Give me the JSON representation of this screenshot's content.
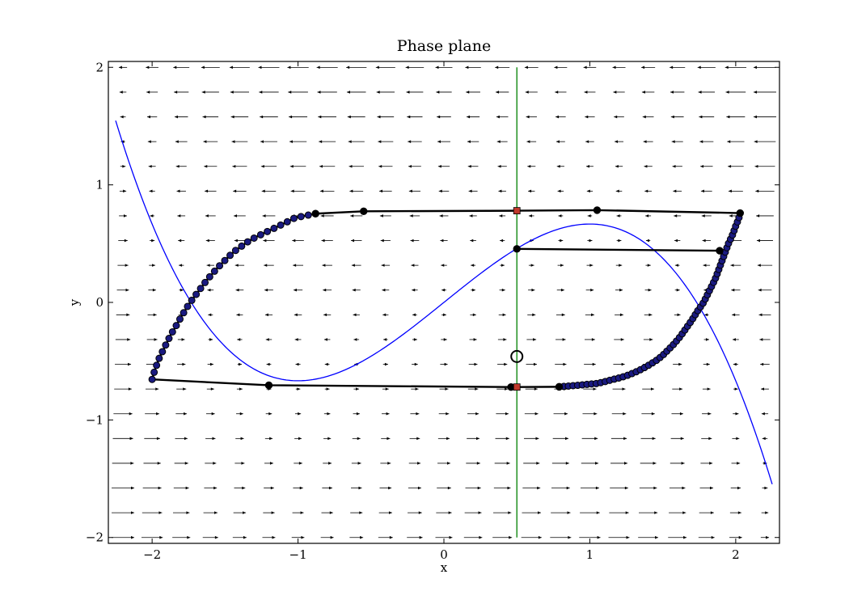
{
  "chart_data": {
    "type": "line",
    "title": "Phase plane",
    "xlabel": "x",
    "ylabel": "y",
    "xlim": [
      -2.3,
      2.3
    ],
    "ylim": [
      -2.05,
      2.05
    ],
    "grid": false,
    "legend": "none",
    "x_ticks": [
      {
        "value": -2,
        "label": "−2"
      },
      {
        "value": -1,
        "label": "−1"
      },
      {
        "value": 0,
        "label": "0"
      },
      {
        "value": 1,
        "label": "1"
      },
      {
        "value": 2,
        "label": "2"
      }
    ],
    "y_ticks": [
      {
        "value": -2,
        "label": "−2"
      },
      {
        "value": -1,
        "label": "−1"
      },
      {
        "value": 0,
        "label": "0"
      },
      {
        "value": 1,
        "label": "1"
      },
      {
        "value": 2,
        "label": "2"
      }
    ],
    "colors": {
      "nullcline": "#0000ff",
      "vertical_line": "#007f00",
      "trajectory": "#000000",
      "marker_face": "#000000",
      "marker_edge": "#000000",
      "dense_marker_face": "#1a1a80",
      "square_marker": "#c0392b",
      "vector_field": "#000000",
      "background": "#ffffff"
    },
    "vector_field": {
      "x_start": -2.2,
      "x_step": 0.2,
      "x_count": 23,
      "y_start": -2.0,
      "y_step": 0.2105,
      "y_count": 20,
      "model": "fitzhugh-nagumo dx = x - x^3/3 - y (arrows scaled by magnitude)"
    },
    "nullcline": {
      "equation": "y = x - x^3/3",
      "x_range": [
        -2.25,
        2.25
      ]
    },
    "vertical_line": {
      "x": 0.5,
      "y_range": [
        -2.0,
        2.0
      ]
    },
    "fixed_point": {
      "x": 0.5,
      "y": -0.46
    },
    "trajectories": [
      {
        "points": [
          [
            0.5,
            0.78
          ],
          [
            1.05,
            0.785
          ],
          [
            2.03,
            0.76
          ]
        ],
        "markers": [
          [
            -0.55,
            0.775
          ],
          [
            -0.88,
            0.755
          ],
          [
            1.05,
            0.785
          ],
          [
            2.03,
            0.76
          ]
        ]
      },
      {
        "points": [
          [
            0.5,
            0.455
          ],
          [
            1.89,
            0.44
          ]
        ],
        "markers": [
          [
            0.5,
            0.455
          ],
          [
            1.89,
            0.44
          ]
        ]
      },
      {
        "points": [
          [
            -2.0,
            -0.655
          ],
          [
            -1.2,
            -0.705
          ],
          [
            0.46,
            -0.72
          ],
          [
            0.79,
            -0.718
          ]
        ],
        "markers": [
          [
            -1.2,
            -0.705
          ],
          [
            0.46,
            -0.72
          ],
          [
            0.79,
            -0.718
          ]
        ]
      }
    ],
    "left_branch": {
      "points": [
        [
          -2.0,
          -0.655
        ],
        [
          -1.99,
          -0.61
        ],
        [
          -1.98,
          -0.57
        ],
        [
          -1.965,
          -0.52
        ],
        [
          -1.95,
          -0.47
        ],
        [
          -1.93,
          -0.42
        ],
        [
          -1.91,
          -0.37
        ],
        [
          -1.89,
          -0.32
        ],
        [
          -1.87,
          -0.27
        ],
        [
          -1.845,
          -0.22
        ],
        [
          -1.82,
          -0.165
        ],
        [
          -1.795,
          -0.11
        ],
        [
          -1.77,
          -0.06
        ],
        [
          -1.745,
          -0.01
        ],
        [
          -1.715,
          0.04
        ],
        [
          -1.685,
          0.09
        ],
        [
          -1.655,
          0.14
        ],
        [
          -1.625,
          0.19
        ],
        [
          -1.59,
          0.24
        ],
        [
          -1.555,
          0.29
        ],
        [
          -1.515,
          0.34
        ],
        [
          -1.475,
          0.39
        ],
        [
          -1.43,
          0.44
        ],
        [
          -1.385,
          0.48
        ],
        [
          -1.34,
          0.52
        ],
        [
          -1.29,
          0.555
        ],
        [
          -1.24,
          0.585
        ],
        [
          -1.19,
          0.615
        ],
        [
          -1.14,
          0.645
        ],
        [
          -1.075,
          0.685
        ],
        [
          -1.02,
          0.72
        ],
        [
          -0.88,
          0.755
        ],
        [
          -0.55,
          0.775
        ],
        [
          0.5,
          0.78
        ]
      ],
      "marker_count": 34
    },
    "right_branch": {
      "points": [
        [
          0.79,
          -0.718
        ],
        [
          0.92,
          -0.705
        ],
        [
          1.0,
          -0.695
        ],
        [
          1.05,
          -0.69
        ],
        [
          1.1,
          -0.675
        ],
        [
          1.16,
          -0.655
        ],
        [
          1.21,
          -0.64
        ],
        [
          1.26,
          -0.62
        ],
        [
          1.31,
          -0.595
        ],
        [
          1.36,
          -0.565
        ],
        [
          1.41,
          -0.53
        ],
        [
          1.46,
          -0.49
        ],
        [
          1.5,
          -0.45
        ],
        [
          1.54,
          -0.4
        ],
        [
          1.58,
          -0.35
        ],
        [
          1.62,
          -0.29
        ],
        [
          1.66,
          -0.22
        ],
        [
          1.7,
          -0.15
        ],
        [
          1.74,
          -0.07
        ],
        [
          1.78,
          0.0
        ],
        [
          1.82,
          0.1
        ],
        [
          1.86,
          0.2
        ],
        [
          1.89,
          0.3
        ],
        [
          1.92,
          0.4
        ],
        [
          1.95,
          0.5
        ],
        [
          1.98,
          0.58
        ],
        [
          2.0,
          0.65
        ],
        [
          2.02,
          0.71
        ],
        [
          2.03,
          0.76
        ]
      ],
      "marker_count": 60
    },
    "square_markers": [
      [
        0.5,
        0.78
      ],
      [
        0.5,
        -0.72
      ]
    ]
  }
}
